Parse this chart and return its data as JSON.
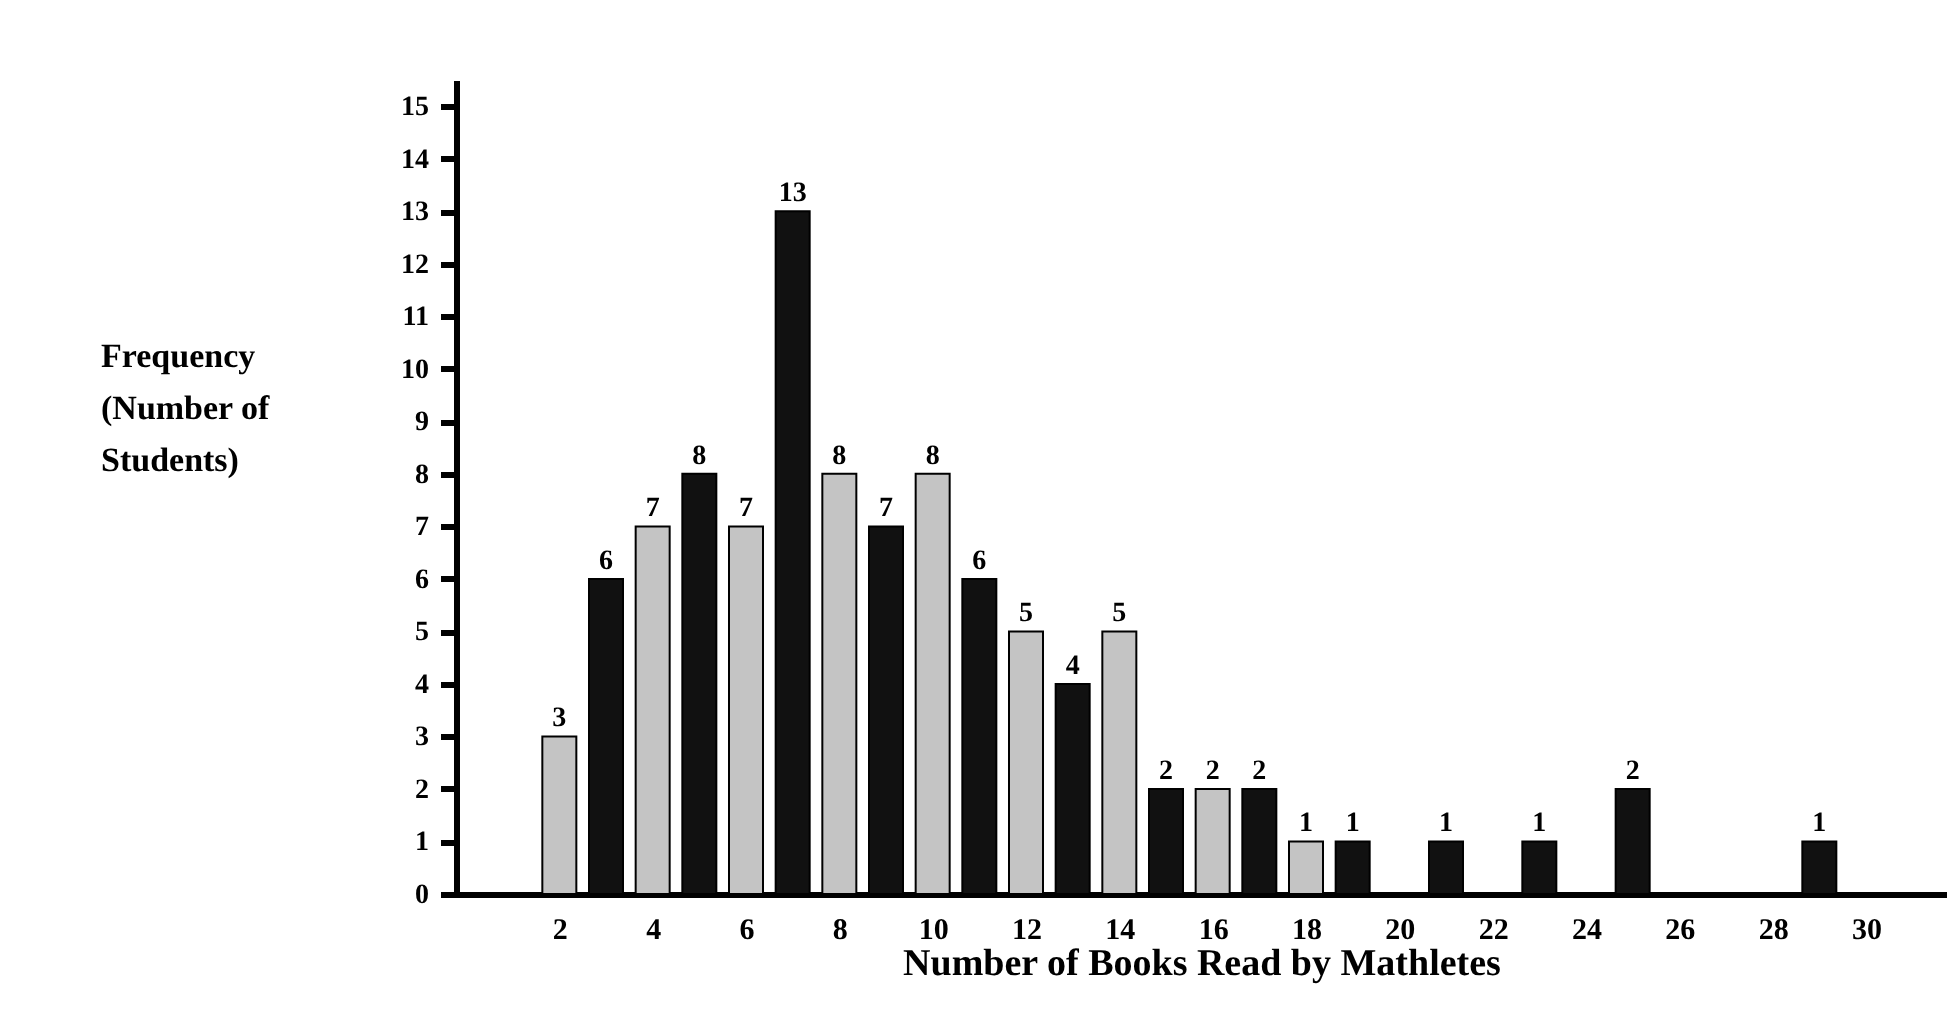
{
  "chart_data": {
    "type": "bar",
    "xlabel": "Number of Books Read by Mathletes",
    "ylabel": "Frequency\n(Number of\nStudents)",
    "x": [
      2,
      3,
      4,
      5,
      6,
      7,
      8,
      9,
      10,
      11,
      12,
      13,
      14,
      15,
      16,
      17,
      18,
      19,
      21,
      23,
      25,
      29
    ],
    "values": [
      3,
      6,
      7,
      8,
      7,
      13,
      8,
      7,
      8,
      6,
      5,
      4,
      5,
      2,
      2,
      2,
      1,
      1,
      1,
      1,
      2,
      1
    ],
    "colors": [
      "#c4c4c4",
      "#111111",
      "#c4c4c4",
      "#111111",
      "#c4c4c4",
      "#111111",
      "#c4c4c4",
      "#111111",
      "#c4c4c4",
      "#111111",
      "#c4c4c4",
      "#111111",
      "#c4c4c4",
      "#111111",
      "#c4c4c4",
      "#111111",
      "#c4c4c4",
      "#111111",
      "#111111",
      "#111111",
      "#111111",
      "#111111"
    ],
    "xlim": [
      0,
      31.5
    ],
    "xticks": [
      2,
      4,
      6,
      8,
      10,
      12,
      14,
      16,
      18,
      20,
      22,
      24,
      26,
      28,
      30
    ],
    "ylim": [
      0,
      15.5
    ],
    "yticks": [
      0,
      1,
      2,
      3,
      4,
      5,
      6,
      7,
      8,
      9,
      10,
      11,
      12,
      13,
      14,
      15
    ],
    "data_labels": true,
    "grid": false
  }
}
